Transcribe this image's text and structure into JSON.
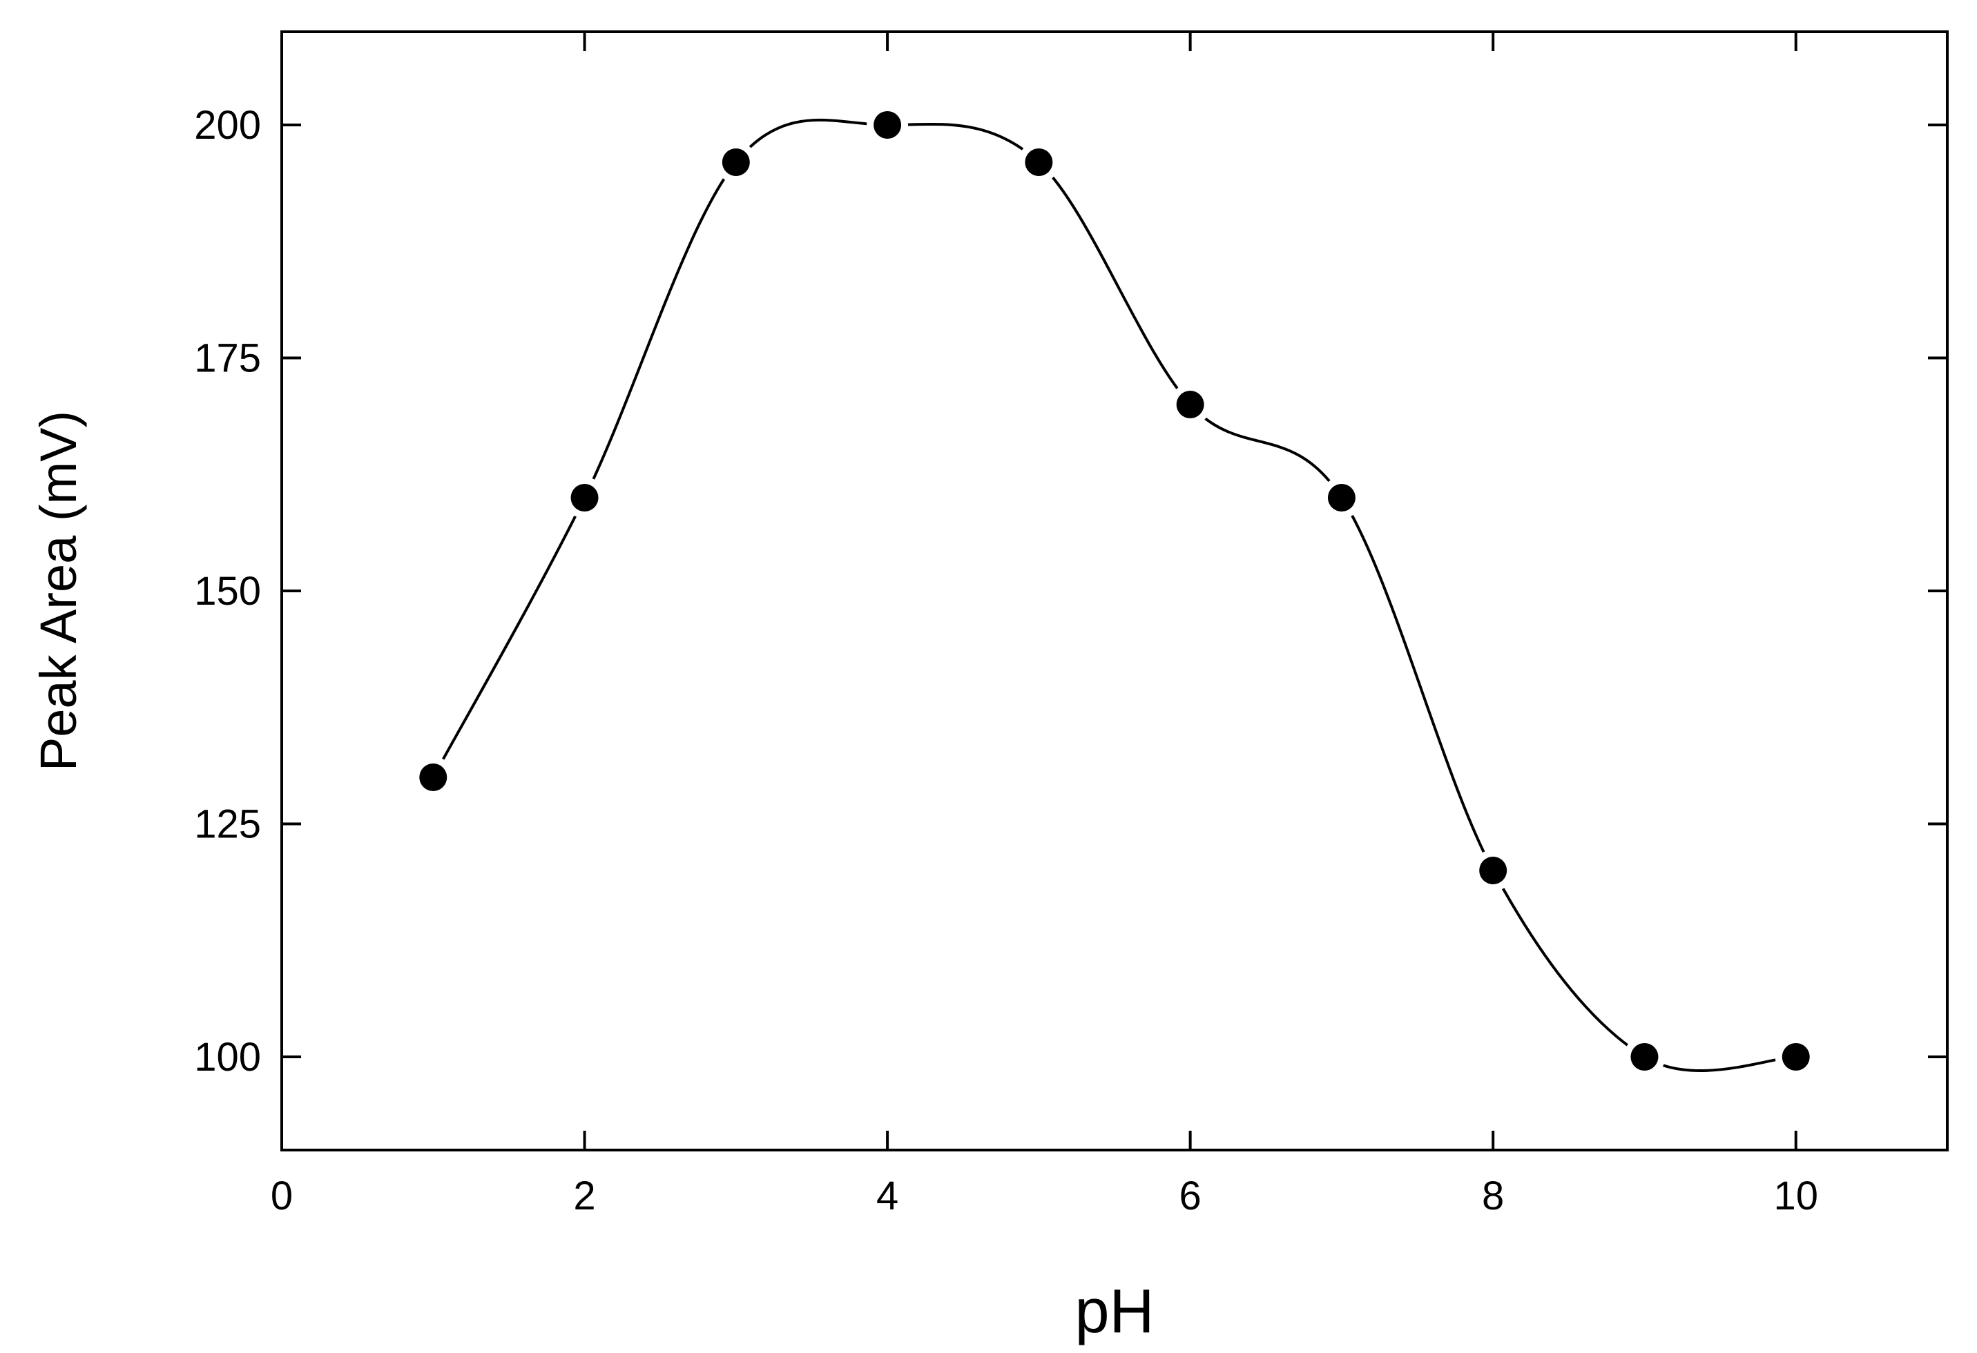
{
  "chart_data": {
    "type": "line",
    "title": "",
    "xlabel": "pH",
    "ylabel": "Peak Area (mV)",
    "xlim": [
      0,
      11
    ],
    "ylim": [
      90,
      210
    ],
    "xticks": [
      0,
      2,
      4,
      6,
      8,
      10
    ],
    "yticks": [
      100,
      125,
      150,
      175,
      200
    ],
    "grid": false,
    "legend": "none",
    "smooth_line": true,
    "series": [
      {
        "x": [
          1,
          2,
          3,
          4,
          5,
          6,
          7,
          8,
          9,
          10
        ],
        "values": [
          130,
          160,
          196,
          200,
          196,
          170,
          160,
          120,
          100,
          100
        ],
        "marker": "filled-circle",
        "color": "#000000"
      }
    ]
  }
}
